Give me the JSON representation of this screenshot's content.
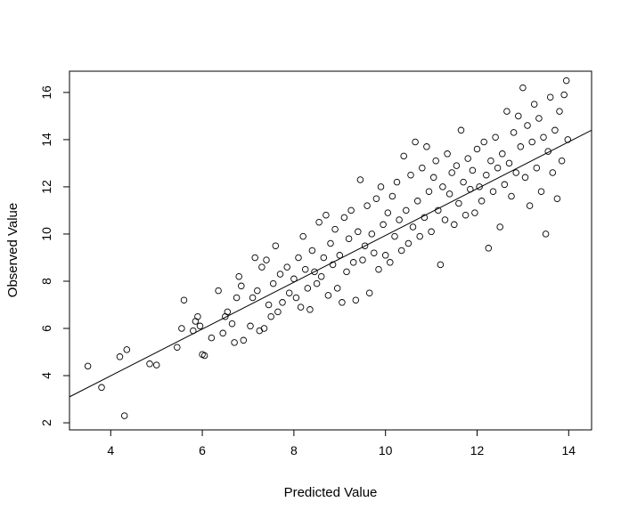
{
  "chart_data": {
    "type": "scatter",
    "title": "",
    "xlabel": "Predicted Value",
    "ylabel": "Observed Value",
    "xlim": [
      3.1,
      14.5
    ],
    "ylim": [
      1.7,
      16.9
    ],
    "x_ticks": [
      4,
      6,
      8,
      10,
      12,
      14
    ],
    "y_ticks": [
      2,
      4,
      6,
      8,
      10,
      12,
      14,
      16
    ],
    "grid": false,
    "marker": "open-circle",
    "point_color": "#000000",
    "fit_line": {
      "x": [
        3.1,
        14.5
      ],
      "y": [
        3.1,
        14.4
      ]
    },
    "series": [
      {
        "points": [
          [
            3.5,
            4.4
          ],
          [
            3.8,
            3.5
          ],
          [
            4.2,
            4.8
          ],
          [
            4.3,
            2.3
          ],
          [
            4.35,
            5.1
          ],
          [
            4.85,
            4.5
          ],
          [
            5.0,
            4.45
          ],
          [
            5.45,
            5.2
          ],
          [
            5.55,
            6.0
          ],
          [
            5.6,
            7.2
          ],
          [
            5.8,
            5.9
          ],
          [
            5.85,
            6.3
          ],
          [
            5.9,
            6.5
          ],
          [
            5.95,
            6.1
          ],
          [
            6.0,
            4.9
          ],
          [
            6.05,
            4.85
          ],
          [
            6.2,
            5.6
          ],
          [
            6.35,
            7.6
          ],
          [
            6.45,
            5.8
          ],
          [
            6.5,
            6.5
          ],
          [
            6.55,
            6.7
          ],
          [
            6.65,
            6.2
          ],
          [
            6.7,
            5.4
          ],
          [
            6.75,
            7.3
          ],
          [
            6.8,
            8.2
          ],
          [
            6.85,
            7.8
          ],
          [
            6.9,
            5.5
          ],
          [
            7.05,
            6.1
          ],
          [
            7.1,
            7.3
          ],
          [
            7.15,
            9.0
          ],
          [
            7.2,
            7.6
          ],
          [
            7.25,
            5.9
          ],
          [
            7.3,
            8.6
          ],
          [
            7.35,
            6.0
          ],
          [
            7.4,
            8.9
          ],
          [
            7.45,
            7.0
          ],
          [
            7.5,
            6.5
          ],
          [
            7.55,
            7.9
          ],
          [
            7.6,
            9.5
          ],
          [
            7.65,
            6.7
          ],
          [
            7.7,
            8.3
          ],
          [
            7.75,
            7.1
          ],
          [
            7.85,
            8.6
          ],
          [
            7.9,
            7.5
          ],
          [
            8.0,
            8.1
          ],
          [
            8.05,
            7.3
          ],
          [
            8.1,
            9.0
          ],
          [
            8.15,
            6.9
          ],
          [
            8.2,
            9.9
          ],
          [
            8.25,
            8.5
          ],
          [
            8.3,
            7.7
          ],
          [
            8.35,
            6.8
          ],
          [
            8.4,
            9.3
          ],
          [
            8.45,
            8.4
          ],
          [
            8.5,
            7.9
          ],
          [
            8.55,
            10.5
          ],
          [
            8.6,
            8.2
          ],
          [
            8.65,
            9.0
          ],
          [
            8.7,
            10.8
          ],
          [
            8.75,
            7.4
          ],
          [
            8.8,
            9.6
          ],
          [
            8.85,
            8.7
          ],
          [
            8.9,
            10.2
          ],
          [
            8.95,
            7.7
          ],
          [
            9.0,
            9.1
          ],
          [
            9.05,
            7.1
          ],
          [
            9.1,
            10.7
          ],
          [
            9.15,
            8.4
          ],
          [
            9.2,
            9.8
          ],
          [
            9.25,
            11.0
          ],
          [
            9.3,
            8.8
          ],
          [
            9.35,
            7.2
          ],
          [
            9.4,
            10.1
          ],
          [
            9.45,
            12.3
          ],
          [
            9.5,
            8.9
          ],
          [
            9.55,
            9.5
          ],
          [
            9.6,
            11.2
          ],
          [
            9.65,
            7.5
          ],
          [
            9.7,
            10.0
          ],
          [
            9.75,
            9.2
          ],
          [
            9.8,
            11.5
          ],
          [
            9.85,
            8.5
          ],
          [
            9.9,
            12.0
          ],
          [
            9.95,
            10.4
          ],
          [
            10.0,
            9.1
          ],
          [
            10.05,
            10.9
          ],
          [
            10.1,
            8.8
          ],
          [
            10.15,
            11.6
          ],
          [
            10.2,
            9.9
          ],
          [
            10.25,
            12.2
          ],
          [
            10.3,
            10.6
          ],
          [
            10.35,
            9.3
          ],
          [
            10.4,
            13.3
          ],
          [
            10.45,
            11.0
          ],
          [
            10.5,
            9.6
          ],
          [
            10.55,
            12.5
          ],
          [
            10.6,
            10.3
          ],
          [
            10.65,
            13.9
          ],
          [
            10.7,
            11.4
          ],
          [
            10.75,
            9.9
          ],
          [
            10.8,
            12.8
          ],
          [
            10.85,
            10.7
          ],
          [
            10.9,
            13.7
          ],
          [
            10.95,
            11.8
          ],
          [
            11.0,
            10.1
          ],
          [
            11.05,
            12.4
          ],
          [
            11.1,
            13.1
          ],
          [
            11.15,
            11.0
          ],
          [
            11.2,
            8.7
          ],
          [
            11.25,
            12.0
          ],
          [
            11.3,
            10.6
          ],
          [
            11.35,
            13.4
          ],
          [
            11.4,
            11.7
          ],
          [
            11.45,
            12.6
          ],
          [
            11.5,
            10.4
          ],
          [
            11.55,
            12.9
          ],
          [
            11.6,
            11.3
          ],
          [
            11.65,
            14.4
          ],
          [
            11.7,
            12.2
          ],
          [
            11.75,
            10.8
          ],
          [
            11.8,
            13.2
          ],
          [
            11.85,
            11.9
          ],
          [
            11.9,
            12.7
          ],
          [
            11.95,
            10.9
          ],
          [
            12.0,
            13.6
          ],
          [
            12.05,
            12.0
          ],
          [
            12.1,
            11.4
          ],
          [
            12.15,
            13.9
          ],
          [
            12.2,
            12.5
          ],
          [
            12.25,
            9.4
          ],
          [
            12.3,
            13.1
          ],
          [
            12.35,
            11.8
          ],
          [
            12.4,
            14.1
          ],
          [
            12.45,
            12.8
          ],
          [
            12.5,
            10.3
          ],
          [
            12.55,
            13.4
          ],
          [
            12.6,
            12.1
          ],
          [
            12.65,
            15.2
          ],
          [
            12.7,
            13.0
          ],
          [
            12.75,
            11.6
          ],
          [
            12.8,
            14.3
          ],
          [
            12.85,
            12.6
          ],
          [
            12.9,
            15.0
          ],
          [
            12.95,
            13.7
          ],
          [
            13.0,
            16.2
          ],
          [
            13.05,
            12.4
          ],
          [
            13.1,
            14.6
          ],
          [
            13.15,
            11.2
          ],
          [
            13.2,
            13.9
          ],
          [
            13.25,
            15.5
          ],
          [
            13.3,
            12.8
          ],
          [
            13.35,
            14.9
          ],
          [
            13.4,
            11.8
          ],
          [
            13.45,
            14.1
          ],
          [
            13.5,
            10.0
          ],
          [
            13.55,
            13.5
          ],
          [
            13.6,
            15.8
          ],
          [
            13.65,
            12.6
          ],
          [
            13.7,
            14.4
          ],
          [
            13.75,
            11.5
          ],
          [
            13.8,
            15.2
          ],
          [
            13.85,
            13.1
          ],
          [
            13.9,
            15.9
          ],
          [
            13.95,
            16.5
          ],
          [
            13.98,
            14.0
          ]
        ]
      }
    ]
  }
}
